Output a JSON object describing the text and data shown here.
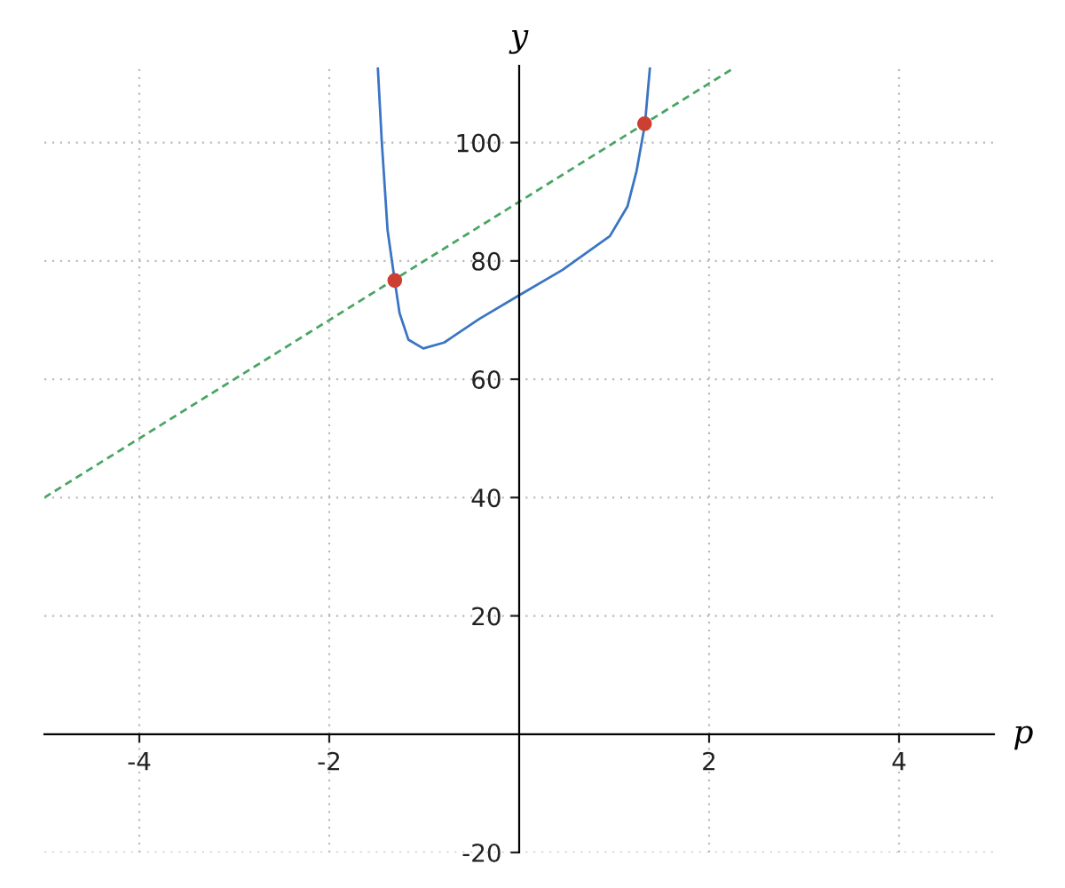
{
  "chart_data": {
    "type": "line",
    "xlabel": "p",
    "ylabel": "y",
    "xlim": [
      -5,
      5
    ],
    "ylim": [
      -20,
      113
    ],
    "xticks": [
      -4,
      -2,
      2,
      4
    ],
    "yticks": [
      -20,
      20,
      40,
      60,
      80,
      100
    ],
    "grid": true,
    "series": [
      {
        "color": "#3a75c4",
        "line_style": "solid",
        "x": [
          -1.488,
          -1.447,
          -1.386,
          -1.311,
          -1.26,
          -1.167,
          -1.01,
          -0.79,
          -0.42,
          0,
          0.457,
          0.955,
          1.14,
          1.236,
          1.324,
          1.376
        ],
        "values": [
          112.5,
          100.2,
          85.2,
          76.7,
          71.2,
          66.7,
          65.2,
          66.2,
          70.2,
          74.2,
          78.5,
          84.2,
          89.2,
          95.2,
          103.1,
          112.5
        ]
      },
      {
        "color": "#4aa564",
        "line_style": "dashed",
        "x": [
          -5,
          2.25
        ],
        "values": [
          40,
          112.5
        ]
      },
      {
        "type": "scatter",
        "color": "#cc3f33",
        "marker": "circle",
        "x": [
          -1.31,
          1.32
        ],
        "values": [
          76.7,
          103.2
        ]
      }
    ]
  }
}
